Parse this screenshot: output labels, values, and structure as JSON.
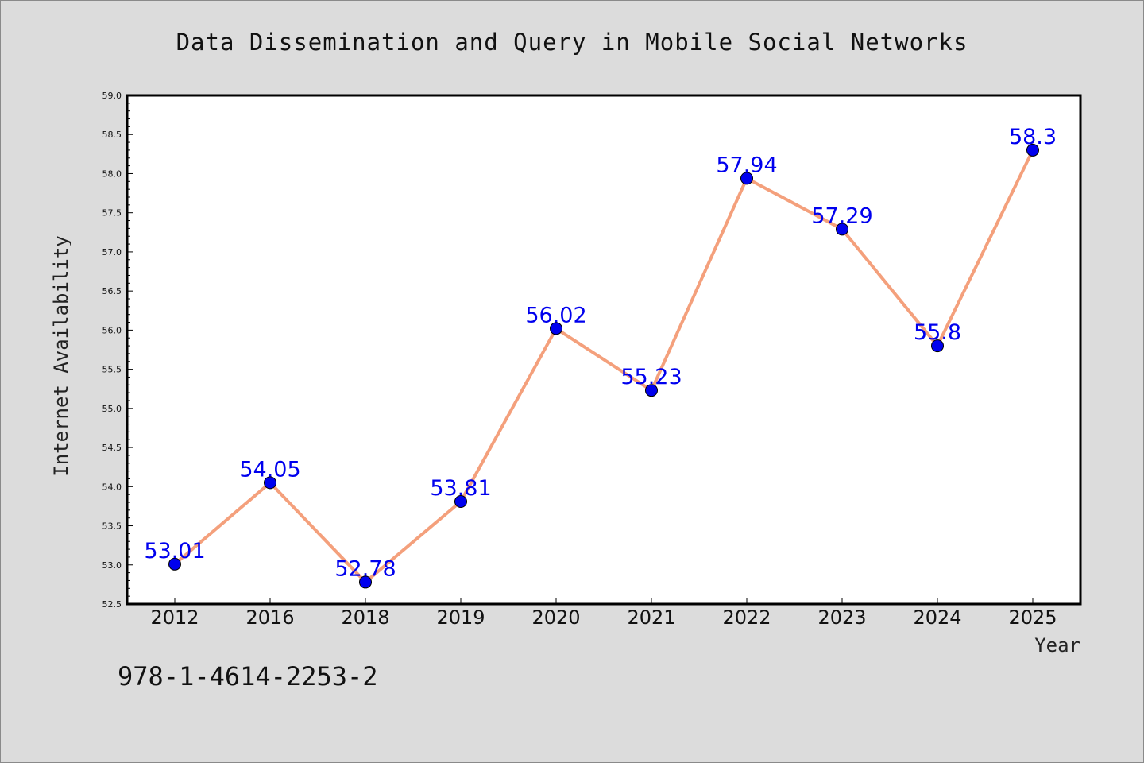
{
  "chart_data": {
    "type": "line",
    "title": "Data Dissemination and Query in Mobile Social Networks",
    "xlabel": "Year",
    "ylabel": "Internet Availability",
    "categories": [
      "2012",
      "2016",
      "2018",
      "2019",
      "2020",
      "2021",
      "2022",
      "2023",
      "2024",
      "2025"
    ],
    "values": [
      53.01,
      54.05,
      52.78,
      53.81,
      56.02,
      55.23,
      57.94,
      57.29,
      55.8,
      58.3
    ],
    "data_labels": [
      "53.01",
      "54.05",
      "52.78",
      "53.81",
      "56.02",
      "55.23",
      "57.94",
      "57.29",
      "55.8",
      "58.3"
    ],
    "ylim": [
      52.5,
      59.0
    ],
    "yticks": [
      "52.5",
      "53.0",
      "53.5",
      "54.0",
      "54.5",
      "55.0",
      "55.5",
      "56.0",
      "56.5",
      "57.0",
      "57.5",
      "58.0",
      "58.5",
      "59.0"
    ],
    "grid": false,
    "legend": "none",
    "line_color": "#f4a07c",
    "marker_color": "#0000ee",
    "label_color": "#0000ee"
  },
  "footer": {
    "isbn": "978-1-4614-2253-2"
  }
}
